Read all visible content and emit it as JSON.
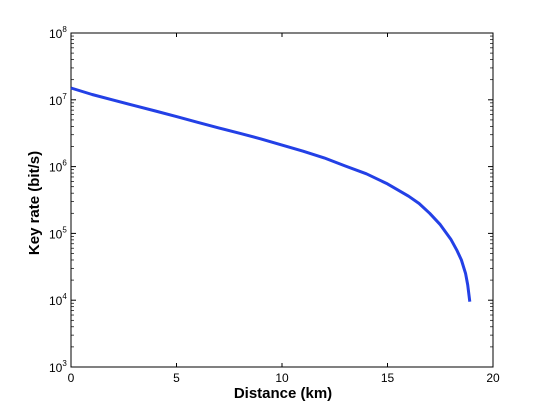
{
  "chart_data": {
    "type": "line",
    "title": "",
    "xlabel": "Distance (km)",
    "ylabel": "Key rate (bit/s)",
    "xlim": [
      0,
      20
    ],
    "ylim": [
      1000,
      100000000
    ],
    "yscale": "log",
    "grid": false,
    "x_ticks": [
      {
        "value": 0,
        "label": "0"
      },
      {
        "value": 5,
        "label": "5"
      },
      {
        "value": 10,
        "label": "10"
      },
      {
        "value": 15,
        "label": "15"
      },
      {
        "value": 20,
        "label": "20"
      }
    ],
    "y_ticks": [
      {
        "value": 1000,
        "base": "10",
        "exp": "3"
      },
      {
        "value": 10000,
        "base": "10",
        "exp": "4"
      },
      {
        "value": 100000,
        "base": "10",
        "exp": "5"
      },
      {
        "value": 1000000,
        "base": "10",
        "exp": "6"
      },
      {
        "value": 10000000,
        "base": "10",
        "exp": "7"
      },
      {
        "value": 100000000,
        "base": "10",
        "exp": "8"
      }
    ],
    "series": [
      {
        "color": "#2340e6",
        "x": [
          0,
          1,
          2,
          3,
          4,
          5,
          6,
          7,
          8,
          9,
          10,
          11,
          12,
          13,
          14,
          15,
          16,
          16.5,
          17,
          17.5,
          18,
          18.3,
          18.5,
          18.7,
          18.8,
          18.9
        ],
        "y": [
          15000000,
          12000000,
          9900000,
          8200000,
          6800000,
          5600000,
          4600000,
          3800000,
          3150000,
          2600000,
          2100000,
          1700000,
          1350000,
          1020000,
          780000,
          550000,
          360000,
          280000,
          200000,
          135000,
          82000,
          55000,
          40000,
          25000,
          17000,
          9500
        ]
      }
    ]
  }
}
